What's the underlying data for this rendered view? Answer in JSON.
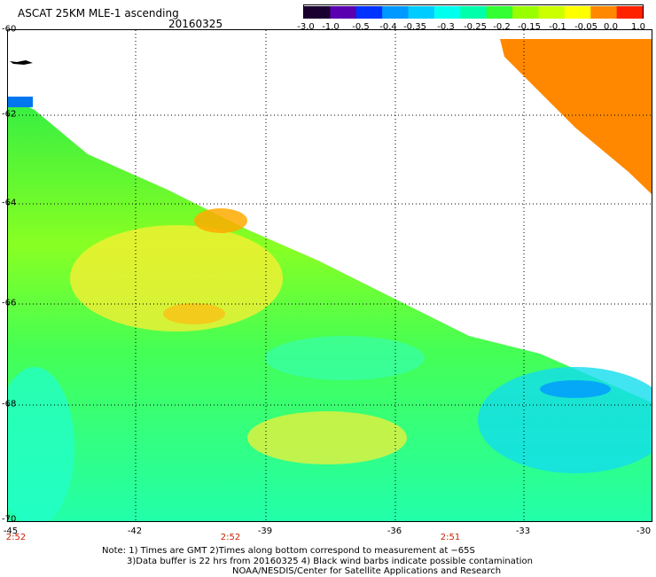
{
  "header": {
    "title": "ASCAT 25KM MLE-1 ascending",
    "date": "20160325"
  },
  "colorbar": {
    "labels": [
      "-3.0",
      "-1.0",
      "-0.5",
      "-0.4",
      "-0.35",
      "-0.3",
      "-0.25",
      "-0.2",
      "-0.15",
      "-0.1",
      "-0.05",
      "0.0",
      "1.0"
    ],
    "colors": [
      "#1a0030",
      "#5a00b0",
      "#0033ff",
      "#0099ff",
      "#00ccff",
      "#00ffee",
      "#00ffaa",
      "#33ff33",
      "#99ff00",
      "#ccff00",
      "#ffff00",
      "#ff8800",
      "#ff2200"
    ]
  },
  "axes": {
    "lat_labels": [
      "-60",
      "-62",
      "-64",
      "-66",
      "-68",
      "-70"
    ],
    "lon_labels": [
      "-45",
      "-42",
      "-39",
      "-36",
      "-33",
      "-30"
    ]
  },
  "time_labels": [
    "2:52",
    "2:52",
    "2:51"
  ],
  "notes": {
    "line1": "Note: 1) Times are GMT 2)Times along bottom correspond to measurement at −65S",
    "line2": "3)Data buffer is 22 hrs from 20160325 4) Black wind barbs indicate possible contamination",
    "line3": "NOAA/NESDIS/Center for Satellite Applications and Research"
  }
}
